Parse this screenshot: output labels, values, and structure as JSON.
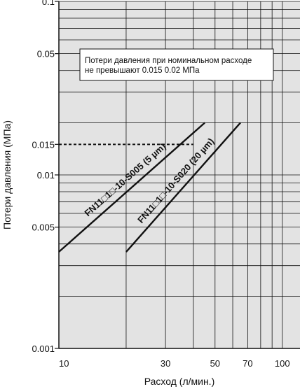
{
  "chart_data": {
    "type": "line",
    "xlabel": "Расход (л/мин.)",
    "ylabel": "Потери давления (МПа)",
    "x_scale": "log",
    "y_scale": "log",
    "xlim": [
      10,
      120
    ],
    "ylim": [
      0.001,
      0.1
    ],
    "x_ticks": [
      {
        "value": 10,
        "label": "10"
      },
      {
        "value": 30,
        "label": "30"
      },
      {
        "value": 50,
        "label": "50"
      },
      {
        "value": 70,
        "label": "70"
      },
      {
        "value": 100,
        "label": "100"
      }
    ],
    "y_ticks": [
      {
        "value": 0.001,
        "label": "0.001"
      },
      {
        "value": 0.005,
        "label": "0.005"
      },
      {
        "value": 0.01,
        "label": "0.01"
      },
      {
        "value": 0.015,
        "label": "0.015"
      },
      {
        "value": 0.05,
        "label": "0.05"
      },
      {
        "value": 0.1,
        "label": "0.1"
      }
    ],
    "grid": true,
    "background_color": "#e3e3e3",
    "series": [
      {
        "name": "FN11□1□-10-S005 (5 µm)",
        "color": "#111111",
        "points": [
          [
            10,
            0.0036
          ],
          [
            45,
            0.02
          ]
        ]
      },
      {
        "name": "FN11□1□-10-S020 (20 µm)",
        "color": "#111111",
        "points": [
          [
            20,
            0.0036
          ],
          [
            65,
            0.02
          ]
        ]
      }
    ],
    "reference_line": {
      "y": 0.015,
      "x_to": 40,
      "style": "dashed"
    },
    "annotation": {
      "line1": "Потери давления при номинальном расходе",
      "line2": "не превышают 0.015  0.02 МПа"
    }
  }
}
